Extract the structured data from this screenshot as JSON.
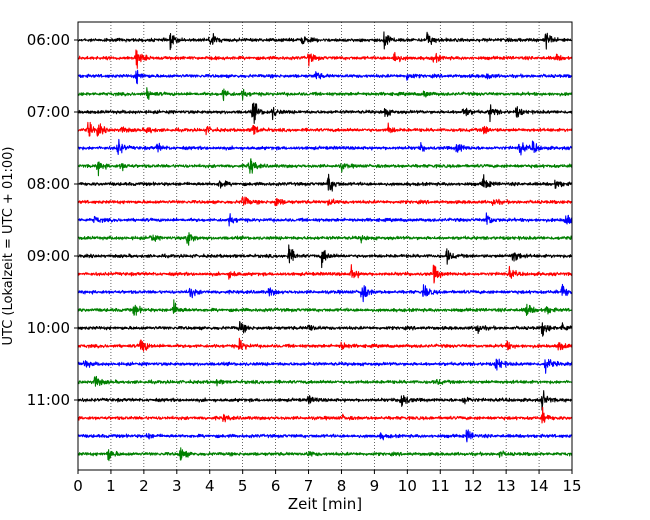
{
  "chart_data": {
    "type": "line",
    "subtype": "helicorder",
    "xlabel": "Zeit  [min]",
    "ylabel": "UTC (Lokalzeit = UTC + 01:00)",
    "xlim": [
      0,
      15
    ],
    "x_ticks": [
      "0",
      "1",
      "2",
      "3",
      "4",
      "5",
      "6",
      "7",
      "8",
      "9",
      "10",
      "11",
      "12",
      "13",
      "14",
      "15"
    ],
    "grid": "vertical dotted",
    "row_interval_minutes": 15,
    "row_colors": [
      "#000000",
      "#ff0000",
      "#0000ff",
      "#008000"
    ],
    "rows": [
      {
        "label": "06:00",
        "color": "#000000",
        "events": [
          {
            "t": 2.8,
            "amp": 0.8
          },
          {
            "t": 4.0,
            "amp": 1.1
          },
          {
            "t": 6.8,
            "amp": 0.5
          },
          {
            "t": 9.3,
            "amp": 1.3
          },
          {
            "t": 10.6,
            "amp": 1.0
          },
          {
            "t": 14.2,
            "amp": 1.0
          }
        ]
      },
      {
        "label": "",
        "color": "#ff0000",
        "events": [
          {
            "t": 1.75,
            "amp": 1.4
          },
          {
            "t": 7.0,
            "amp": 0.7
          },
          {
            "t": 9.6,
            "amp": 0.9
          },
          {
            "t": 10.8,
            "amp": 0.6
          },
          {
            "t": 14.5,
            "amp": 0.4
          }
        ]
      },
      {
        "label": "",
        "color": "#0000ff",
        "events": [
          {
            "t": 1.75,
            "amp": 0.9
          },
          {
            "t": 7.2,
            "amp": 0.5
          },
          {
            "t": 10.0,
            "amp": 0.5
          },
          {
            "t": 12.4,
            "amp": 0.4
          }
        ]
      },
      {
        "label": "",
        "color": "#008000",
        "events": [
          {
            "t": 2.1,
            "amp": 0.6
          },
          {
            "t": 4.4,
            "amp": 0.7
          },
          {
            "t": 5.0,
            "amp": 0.5
          },
          {
            "t": 10.5,
            "amp": 0.4
          }
        ]
      },
      {
        "label": "07:00",
        "color": "#000000",
        "events": [
          {
            "t": 5.3,
            "amp": 1.5
          },
          {
            "t": 5.9,
            "amp": 0.7
          },
          {
            "t": 9.3,
            "amp": 0.6
          },
          {
            "t": 11.7,
            "amp": 0.8
          },
          {
            "t": 12.5,
            "amp": 0.9
          },
          {
            "t": 13.3,
            "amp": 0.7
          }
        ]
      },
      {
        "label": "",
        "color": "#ff0000",
        "events": [
          {
            "t": 0.3,
            "amp": 0.9
          },
          {
            "t": 0.6,
            "amp": 0.7
          },
          {
            "t": 1.3,
            "amp": 0.5
          },
          {
            "t": 2.1,
            "amp": 0.5
          },
          {
            "t": 3.9,
            "amp": 0.4
          },
          {
            "t": 5.3,
            "amp": 0.8
          },
          {
            "t": 9.4,
            "amp": 0.6
          },
          {
            "t": 12.3,
            "amp": 0.6
          }
        ]
      },
      {
        "label": "",
        "color": "#0000ff",
        "events": [
          {
            "t": 1.2,
            "amp": 1.0
          },
          {
            "t": 2.4,
            "amp": 0.5
          },
          {
            "t": 10.4,
            "amp": 0.4
          },
          {
            "t": 11.5,
            "amp": 0.8
          },
          {
            "t": 13.4,
            "amp": 0.9
          },
          {
            "t": 13.8,
            "amp": 0.7
          }
        ]
      },
      {
        "label": "",
        "color": "#008000",
        "events": [
          {
            "t": 0.6,
            "amp": 0.8
          },
          {
            "t": 1.3,
            "amp": 0.5
          },
          {
            "t": 5.2,
            "amp": 1.2
          },
          {
            "t": 8.0,
            "amp": 0.4
          }
        ]
      },
      {
        "label": "08:00",
        "color": "#000000",
        "events": [
          {
            "t": 4.3,
            "amp": 0.6
          },
          {
            "t": 7.6,
            "amp": 1.3
          },
          {
            "t": 12.3,
            "amp": 0.9
          },
          {
            "t": 14.5,
            "amp": 0.6
          }
        ]
      },
      {
        "label": "",
        "color": "#ff0000",
        "events": [
          {
            "t": 5.0,
            "amp": 0.9
          },
          {
            "t": 6.0,
            "amp": 0.7
          },
          {
            "t": 7.6,
            "amp": 0.5
          },
          {
            "t": 12.6,
            "amp": 0.5
          }
        ]
      },
      {
        "label": "",
        "color": "#0000ff",
        "events": [
          {
            "t": 0.5,
            "amp": 0.4
          },
          {
            "t": 4.6,
            "amp": 0.7
          },
          {
            "t": 12.4,
            "amp": 0.9
          },
          {
            "t": 14.8,
            "amp": 0.9
          }
        ]
      },
      {
        "label": "",
        "color": "#008000",
        "events": [
          {
            "t": 2.2,
            "amp": 0.5
          },
          {
            "t": 3.3,
            "amp": 1.2
          },
          {
            "t": 8.6,
            "amp": 0.3
          }
        ]
      },
      {
        "label": "09:00",
        "color": "#000000",
        "events": [
          {
            "t": 6.4,
            "amp": 1.1
          },
          {
            "t": 7.4,
            "amp": 1.1
          },
          {
            "t": 11.2,
            "amp": 0.8
          },
          {
            "t": 13.2,
            "amp": 1.0
          }
        ]
      },
      {
        "label": "",
        "color": "#ff0000",
        "events": [
          {
            "t": 4.6,
            "amp": 0.6
          },
          {
            "t": 8.3,
            "amp": 0.9
          },
          {
            "t": 10.8,
            "amp": 1.0
          },
          {
            "t": 13.1,
            "amp": 0.6
          }
        ]
      },
      {
        "label": "",
        "color": "#0000ff",
        "events": [
          {
            "t": 3.4,
            "amp": 0.7
          },
          {
            "t": 5.8,
            "amp": 0.5
          },
          {
            "t": 8.6,
            "amp": 1.4
          },
          {
            "t": 10.5,
            "amp": 0.9
          },
          {
            "t": 14.7,
            "amp": 0.9
          }
        ]
      },
      {
        "label": "",
        "color": "#008000",
        "events": [
          {
            "t": 1.7,
            "amp": 0.7
          },
          {
            "t": 2.9,
            "amp": 0.9
          },
          {
            "t": 13.6,
            "amp": 1.0
          },
          {
            "t": 14.2,
            "amp": 0.5
          }
        ]
      },
      {
        "label": "10:00",
        "color": "#000000",
        "events": [
          {
            "t": 4.9,
            "amp": 0.8
          },
          {
            "t": 7.0,
            "amp": 0.5
          },
          {
            "t": 12.1,
            "amp": 0.7
          },
          {
            "t": 14.1,
            "amp": 0.9
          },
          {
            "t": 14.7,
            "amp": 0.6
          }
        ]
      },
      {
        "label": "",
        "color": "#ff0000",
        "events": [
          {
            "t": 1.9,
            "amp": 1.2
          },
          {
            "t": 4.9,
            "amp": 0.8
          },
          {
            "t": 8.0,
            "amp": 0.5
          },
          {
            "t": 13.0,
            "amp": 0.5
          },
          {
            "t": 14.6,
            "amp": 0.6
          }
        ]
      },
      {
        "label": "",
        "color": "#0000ff",
        "events": [
          {
            "t": 0.2,
            "amp": 0.5
          },
          {
            "t": 12.7,
            "amp": 1.0
          },
          {
            "t": 14.2,
            "amp": 1.1
          }
        ]
      },
      {
        "label": "",
        "color": "#008000",
        "events": [
          {
            "t": 0.5,
            "amp": 1.0
          },
          {
            "t": 4.2,
            "amp": 0.3
          },
          {
            "t": 10.9,
            "amp": 0.3
          }
        ]
      },
      {
        "label": "11:00",
        "color": "#000000",
        "events": [
          {
            "t": 7.0,
            "amp": 0.5
          },
          {
            "t": 9.8,
            "amp": 1.4
          },
          {
            "t": 11.7,
            "amp": 0.6
          },
          {
            "t": 14.1,
            "amp": 1.1
          }
        ]
      },
      {
        "label": "",
        "color": "#ff0000",
        "events": [
          {
            "t": 4.4,
            "amp": 0.4
          },
          {
            "t": 8.0,
            "amp": 0.3
          },
          {
            "t": 14.1,
            "amp": 0.8
          }
        ]
      },
      {
        "label": "",
        "color": "#0000ff",
        "events": [
          {
            "t": 2.1,
            "amp": 0.3
          },
          {
            "t": 9.2,
            "amp": 0.3
          },
          {
            "t": 11.8,
            "amp": 0.8
          }
        ]
      },
      {
        "label": "",
        "color": "#008000",
        "events": [
          {
            "t": 0.9,
            "amp": 0.9
          },
          {
            "t": 3.1,
            "amp": 0.9
          },
          {
            "t": 7.0,
            "amp": 0.3
          },
          {
            "t": 12.8,
            "amp": 0.3
          }
        ]
      }
    ]
  }
}
